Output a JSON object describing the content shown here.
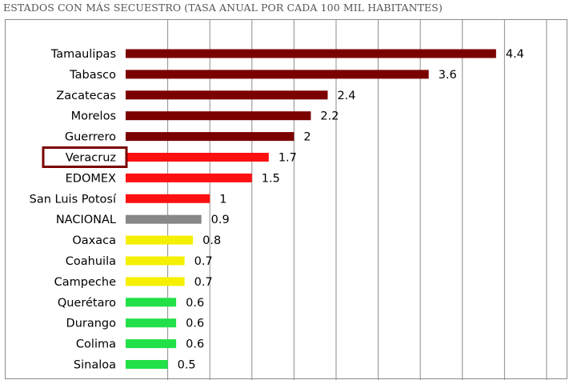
{
  "header": {
    "title": "ESTADOS CON MÁS SECUESTRO (TASA ANUAL POR CADA 100 MIL HABITANTES)"
  },
  "chart_data": {
    "type": "bar",
    "orientation": "horizontal",
    "title": "",
    "xlabel": "",
    "ylabel": "",
    "xlim": [
      0,
      5.2
    ],
    "grid": true,
    "categories": [
      "Tamaulipas",
      "Tabasco",
      "Zacatecas",
      "Morelos",
      "Guerrero",
      "Veracruz",
      "EDOMEX",
      "San Luis Potosí",
      "NACIONAL",
      "Oaxaca",
      "Coahuila",
      "Campeche",
      "Querétaro",
      "Durango",
      "Colima",
      "Sinaloa"
    ],
    "values": [
      4.4,
      3.6,
      2.4,
      2.2,
      2,
      1.7,
      1.5,
      1,
      0.9,
      0.8,
      0.7,
      0.7,
      0.6,
      0.6,
      0.6,
      0.5
    ],
    "value_labels": [
      "4.4",
      "3.6",
      "2.4",
      "2.2",
      "2",
      "1.7",
      "1.5",
      "1",
      "0.9",
      "0.8",
      "0.7",
      "0.7",
      "0.6",
      "0.6",
      "0.6",
      "0.5"
    ],
    "bar_colors": [
      "#7b0000",
      "#7b0000",
      "#7b0000",
      "#7b0000",
      "#7b0000",
      "#ff1010",
      "#ff1010",
      "#ff1010",
      "#888888",
      "#f5f000",
      "#f5f000",
      "#f5f000",
      "#22e048",
      "#22e048",
      "#22e048",
      "#22e048"
    ],
    "highlighted_category": "Veracruz",
    "highlight_color": "#7b0000"
  }
}
